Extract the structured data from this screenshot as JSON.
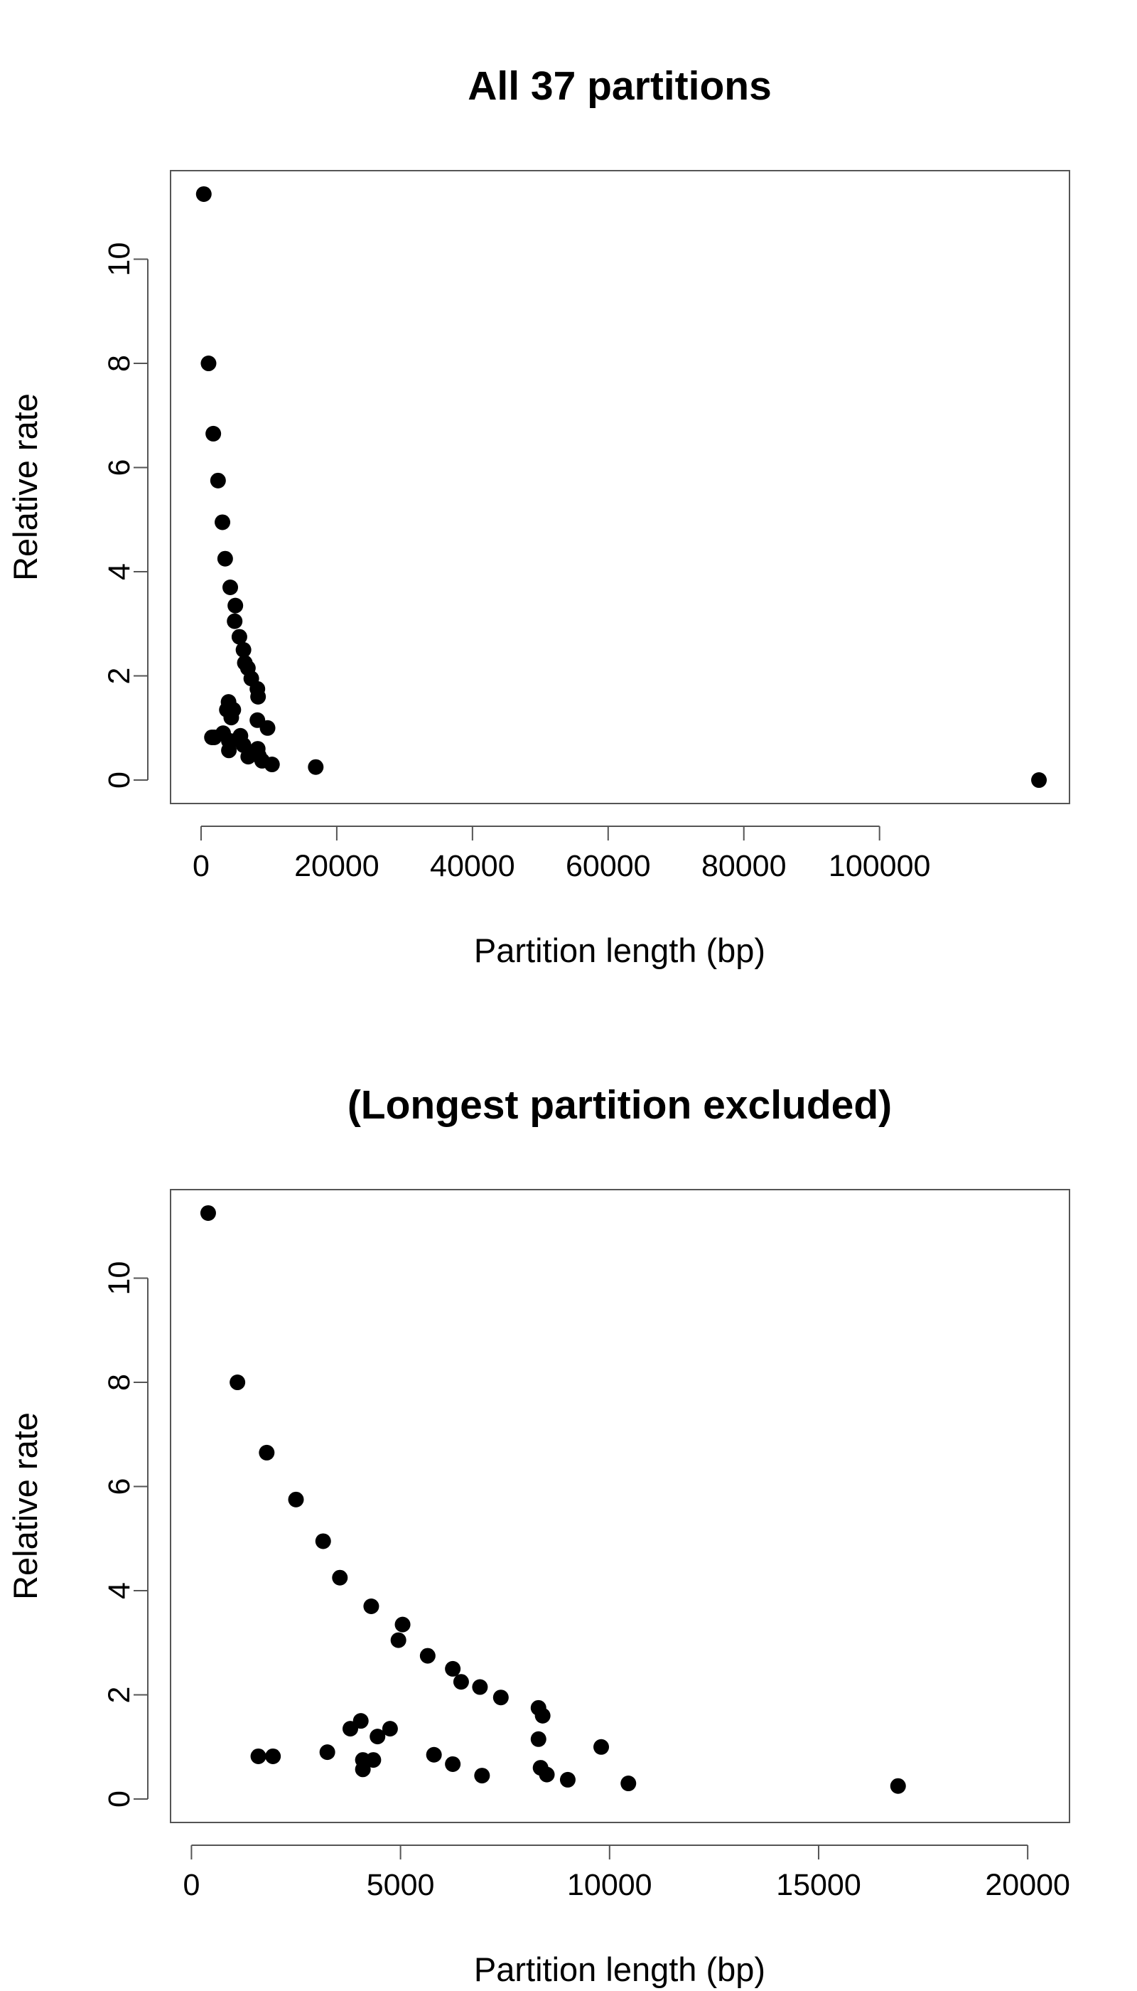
{
  "chart_data": [
    {
      "type": "scatter",
      "title": "All 37 partitions",
      "xlabel": "Partition length (bp)",
      "ylabel": "Relative rate",
      "xlim": [
        -4500,
        128000
      ],
      "ylim": [
        -0.45,
        11.7
      ],
      "x_ticks": [
        0,
        20000,
        40000,
        60000,
        80000,
        100000
      ],
      "x_tick_labels": [
        "0",
        "20000",
        "40000",
        "60000",
        "80000",
        "100000"
      ],
      "y_ticks": [
        0,
        2,
        4,
        6,
        8,
        10
      ],
      "y_tick_labels": [
        "0",
        "2",
        "4",
        "6",
        "8",
        "10"
      ],
      "grid": false,
      "legend": "none",
      "marker_color": "#000000",
      "points": [
        {
          "x": 400,
          "y": 11.25
        },
        {
          "x": 1100,
          "y": 8.0
        },
        {
          "x": 1800,
          "y": 6.65
        },
        {
          "x": 2500,
          "y": 5.75
        },
        {
          "x": 3150,
          "y": 4.95
        },
        {
          "x": 3550,
          "y": 4.25
        },
        {
          "x": 4300,
          "y": 3.7
        },
        {
          "x": 5050,
          "y": 3.35
        },
        {
          "x": 4950,
          "y": 3.05
        },
        {
          "x": 5650,
          "y": 2.75
        },
        {
          "x": 6250,
          "y": 2.5
        },
        {
          "x": 6450,
          "y": 2.25
        },
        {
          "x": 6900,
          "y": 2.15
        },
        {
          "x": 7400,
          "y": 1.95
        },
        {
          "x": 8300,
          "y": 1.75
        },
        {
          "x": 8400,
          "y": 1.6
        },
        {
          "x": 8300,
          "y": 1.15
        },
        {
          "x": 9800,
          "y": 1.0
        },
        {
          "x": 4050,
          "y": 1.5
        },
        {
          "x": 3800,
          "y": 1.35
        },
        {
          "x": 4750,
          "y": 1.35
        },
        {
          "x": 4450,
          "y": 1.2
        },
        {
          "x": 1600,
          "y": 0.82
        },
        {
          "x": 1950,
          "y": 0.82
        },
        {
          "x": 3250,
          "y": 0.9
        },
        {
          "x": 5800,
          "y": 0.85
        },
        {
          "x": 4100,
          "y": 0.75
        },
        {
          "x": 4350,
          "y": 0.75
        },
        {
          "x": 6250,
          "y": 0.67
        },
        {
          "x": 4100,
          "y": 0.57
        },
        {
          "x": 8350,
          "y": 0.6
        },
        {
          "x": 6950,
          "y": 0.45
        },
        {
          "x": 8500,
          "y": 0.47
        },
        {
          "x": 9000,
          "y": 0.37
        },
        {
          "x": 10450,
          "y": 0.3
        },
        {
          "x": 16900,
          "y": 0.25
        },
        {
          "x": 123500,
          "y": 0.0
        }
      ]
    },
    {
      "type": "scatter",
      "title": "(Longest partition excluded)",
      "xlabel": "Partition length (bp)",
      "ylabel": "Relative rate",
      "xlim": [
        -500,
        21000
      ],
      "ylim": [
        -0.45,
        11.7
      ],
      "x_ticks": [
        0,
        5000,
        10000,
        15000,
        20000
      ],
      "x_tick_labels": [
        "0",
        "5000",
        "10000",
        "15000",
        "20000"
      ],
      "y_ticks": [
        0,
        2,
        4,
        6,
        8,
        10
      ],
      "y_tick_labels": [
        "0",
        "2",
        "4",
        "6",
        "8",
        "10"
      ],
      "grid": false,
      "legend": "none",
      "marker_color": "#000000",
      "points": [
        {
          "x": 400,
          "y": 11.25
        },
        {
          "x": 1100,
          "y": 8.0
        },
        {
          "x": 1800,
          "y": 6.65
        },
        {
          "x": 2500,
          "y": 5.75
        },
        {
          "x": 3150,
          "y": 4.95
        },
        {
          "x": 3550,
          "y": 4.25
        },
        {
          "x": 4300,
          "y": 3.7
        },
        {
          "x": 5050,
          "y": 3.35
        },
        {
          "x": 4950,
          "y": 3.05
        },
        {
          "x": 5650,
          "y": 2.75
        },
        {
          "x": 6250,
          "y": 2.5
        },
        {
          "x": 6450,
          "y": 2.25
        },
        {
          "x": 6900,
          "y": 2.15
        },
        {
          "x": 7400,
          "y": 1.95
        },
        {
          "x": 8300,
          "y": 1.75
        },
        {
          "x": 8400,
          "y": 1.6
        },
        {
          "x": 8300,
          "y": 1.15
        },
        {
          "x": 9800,
          "y": 1.0
        },
        {
          "x": 4050,
          "y": 1.5
        },
        {
          "x": 3800,
          "y": 1.35
        },
        {
          "x": 4750,
          "y": 1.35
        },
        {
          "x": 4450,
          "y": 1.2
        },
        {
          "x": 1600,
          "y": 0.82
        },
        {
          "x": 1950,
          "y": 0.82
        },
        {
          "x": 3250,
          "y": 0.9
        },
        {
          "x": 5800,
          "y": 0.85
        },
        {
          "x": 4100,
          "y": 0.75
        },
        {
          "x": 4350,
          "y": 0.75
        },
        {
          "x": 6250,
          "y": 0.67
        },
        {
          "x": 4100,
          "y": 0.57
        },
        {
          "x": 8350,
          "y": 0.6
        },
        {
          "x": 6950,
          "y": 0.45
        },
        {
          "x": 8500,
          "y": 0.47
        },
        {
          "x": 9000,
          "y": 0.37
        },
        {
          "x": 10450,
          "y": 0.3
        },
        {
          "x": 16900,
          "y": 0.25
        }
      ]
    }
  ]
}
